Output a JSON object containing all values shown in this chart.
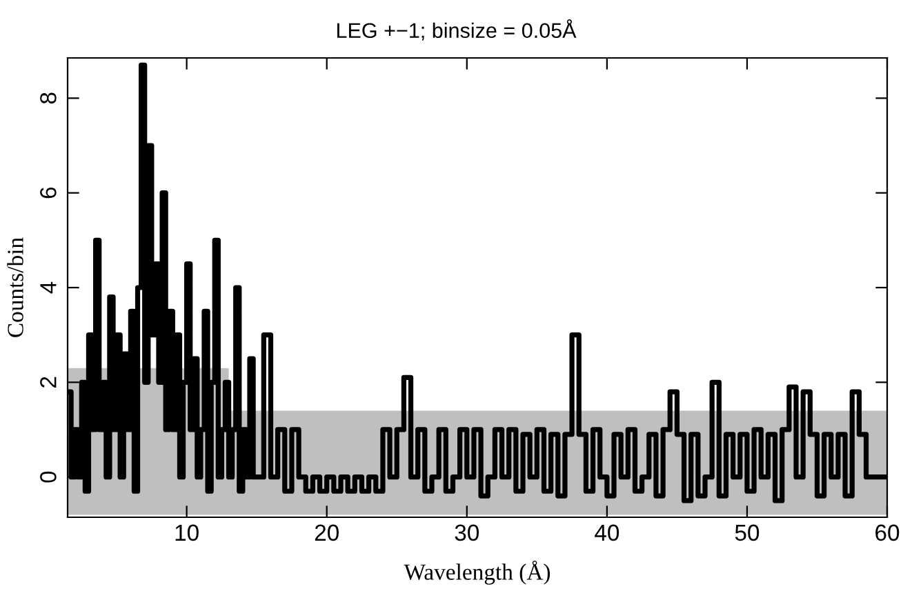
{
  "chart_data": {
    "type": "step",
    "title": "LEG +−1; binsize = 0.05Å",
    "xlabel": "Wavelength (Å)",
    "ylabel": "Counts/bin",
    "xlim": [
      1.5,
      60
    ],
    "xticks": [
      10,
      20,
      30,
      40,
      50,
      60
    ],
    "ylim": [
      -0.85,
      8.85
    ],
    "yticks": [
      0,
      2,
      4,
      6,
      8
    ],
    "grid": false,
    "legend": false,
    "marker": "none",
    "line_style": "solid",
    "series": [
      {
        "color": "#000000",
        "x": [
          1.5,
          1.75,
          2.0,
          2.25,
          2.5,
          2.75,
          3.0,
          3.25,
          3.5,
          3.75,
          4.0,
          4.25,
          4.5,
          4.75,
          5.0,
          5.25,
          5.5,
          5.75,
          6.0,
          6.25,
          6.5,
          6.75,
          7.0,
          7.25,
          7.5,
          7.75,
          8.0,
          8.25,
          8.5,
          8.75,
          9.0,
          9.25,
          9.5,
          9.75,
          10.0,
          10.25,
          10.5,
          10.75,
          11.0,
          11.25,
          11.5,
          11.75,
          12.0,
          12.25,
          12.5,
          12.75,
          13.0,
          13.25,
          13.5,
          13.75,
          14.0,
          14.25,
          14.5,
          14.75,
          15,
          15.5,
          16,
          16.5,
          17,
          17.5,
          18,
          18.5,
          19,
          19.5,
          20,
          20.5,
          21,
          21.5,
          22,
          22.5,
          23,
          23.5,
          24,
          24.5,
          25,
          25.5,
          26,
          26.5,
          27,
          27.5,
          28,
          28.5,
          29,
          29.5,
          30,
          30.5,
          31,
          31.5,
          32,
          32.5,
          33,
          33.5,
          34,
          34.5,
          35,
          35.5,
          36,
          36.5,
          37,
          37.5,
          38,
          38.5,
          39,
          39.5,
          40,
          40.5,
          41,
          41.5,
          42,
          42.5,
          43,
          43.5,
          44,
          44.5,
          45,
          45.5,
          46,
          46.5,
          47,
          47.5,
          48,
          48.5,
          49,
          49.5,
          50,
          50.5,
          51,
          51.5,
          52,
          52.5,
          53,
          53.5,
          54,
          54.5,
          55,
          55.5,
          56,
          56.5,
          57,
          57.5,
          58,
          58.5,
          59,
          60
        ],
        "values": [
          1.8,
          0,
          1,
          0,
          2,
          -0.3,
          3,
          1,
          5,
          1,
          2,
          0,
          3.8,
          1,
          3,
          0,
          2.6,
          1,
          3.5,
          -0.3,
          4,
          8.7,
          2,
          7,
          3,
          4.5,
          2,
          6,
          1,
          3.5,
          1,
          3,
          0,
          2,
          4.5,
          1,
          2.5,
          0,
          1,
          3.5,
          -0.3,
          2,
          5,
          0,
          1,
          2,
          0,
          1,
          4,
          -0.3,
          1,
          0,
          2.5,
          0,
          0,
          3,
          0,
          1,
          -0.3,
          1,
          0,
          -0.3,
          0,
          -0.3,
          0,
          -0.3,
          0,
          -0.3,
          0,
          -0.3,
          0,
          -0.3,
          1,
          0,
          1,
          2.1,
          0,
          1,
          -0.3,
          0,
          1,
          -0.3,
          0,
          1,
          0,
          1,
          -0.4,
          0,
          1,
          0,
          1,
          -0.3,
          0.9,
          0,
          1,
          -0.3,
          0.9,
          -0.4,
          0.9,
          3,
          0.9,
          -0.3,
          1,
          0,
          -0.4,
          0.9,
          0,
          1,
          -0.3,
          0,
          0.9,
          -0.4,
          1,
          1.8,
          0.9,
          -0.5,
          0.9,
          -0.4,
          0,
          2,
          -0.4,
          0.9,
          0,
          0.9,
          -0.3,
          1,
          0,
          0.9,
          -0.5,
          1,
          1.9,
          0,
          1.8,
          0.9,
          -0.4,
          0.9,
          0,
          0.9,
          -0.4,
          1.8,
          0.9,
          0,
          0,
          0
        ],
        "lower": [
          -0.8,
          -0.8,
          -0.8,
          -0.8,
          -0.8,
          -0.8,
          -0.8,
          -0.8,
          -0.8,
          -0.8,
          -0.8,
          -0.8,
          -0.8,
          -0.8,
          -0.8,
          -0.8,
          -0.8,
          -0.8,
          -0.8,
          -0.8,
          -0.8,
          -0.8,
          -0.8,
          -0.8,
          -0.8,
          -0.8,
          -0.8,
          -0.8,
          -0.8,
          -0.8,
          -0.8,
          -0.8,
          -0.8,
          -0.8,
          -0.8,
          -0.8,
          -0.8,
          -0.8,
          -0.8,
          -0.8,
          -0.8,
          -0.8,
          -0.8,
          -0.8,
          -0.8,
          -0.8,
          -0.8,
          -0.8,
          -0.8,
          -0.8,
          -0.8,
          -0.8,
          -0.8,
          -0.8,
          -0.8,
          -0.8,
          -0.8,
          -0.8,
          -0.8,
          -0.8,
          -0.8,
          -0.8,
          -0.8,
          -0.8,
          -0.8,
          -0.8,
          -0.8,
          -0.8,
          -0.8,
          -0.8,
          -0.8,
          -0.8,
          -0.8,
          -0.8,
          -0.8,
          -0.8,
          -0.8,
          -0.8,
          -0.8,
          -0.8,
          -0.8,
          -0.8,
          -0.8,
          -0.8,
          -0.8,
          -0.8,
          -0.8,
          -0.8,
          -0.8,
          -0.8,
          -0.8,
          -0.8,
          -0.8,
          -0.8,
          -0.8,
          -0.8,
          -0.8,
          -0.8,
          -0.8,
          -0.8,
          -0.8,
          -0.8,
          -0.8,
          -0.8,
          -0.8,
          -0.8,
          -0.8,
          -0.8,
          -0.8,
          -0.8,
          -0.8,
          -0.8,
          -0.8,
          -0.8,
          -0.8,
          -0.8,
          -0.8,
          -0.8,
          -0.8,
          -0.8,
          -0.8,
          -0.8,
          -0.8,
          -0.8,
          -0.8,
          -0.8,
          -0.8,
          -0.8,
          -0.8,
          -0.8,
          -0.8,
          -0.8,
          -0.8,
          -0.8,
          -0.8,
          -0.8,
          -0.8,
          -0.8,
          -0.8,
          -0.8,
          -0.8,
          -0.8,
          -0.8,
          -0.8
        ],
        "upper": [
          2.3,
          2.3,
          2.3,
          2.3,
          2.3,
          2.3,
          2.3,
          2.3,
          2.3,
          2.3,
          2.3,
          2.3,
          2.3,
          2.3,
          2.3,
          2.3,
          2.3,
          2.3,
          2.3,
          2.3,
          2.3,
          2.3,
          2.3,
          2.3,
          2.3,
          2.3,
          2.3,
          2.3,
          2.3,
          2.3,
          2.3,
          2.3,
          2.3,
          2.3,
          2.3,
          2.3,
          2.3,
          2.3,
          2.3,
          2.3,
          2.3,
          2.3,
          2.3,
          2.3,
          2.3,
          2.3,
          1.4,
          1.4,
          1.4,
          1.4,
          1.4,
          1.4,
          1.4,
          1.4,
          1.4,
          1.4,
          1.4,
          1.4,
          1.4,
          1.4,
          1.4,
          1.4,
          1.4,
          1.4,
          1.4,
          1.4,
          1.4,
          1.4,
          1.4,
          1.4,
          1.4,
          1.4,
          1.4,
          1.4,
          1.4,
          1.4,
          1.4,
          1.4,
          1.4,
          1.4,
          1.4,
          1.4,
          1.4,
          1.4,
          1.4,
          1.4,
          1.4,
          1.4,
          1.4,
          1.4,
          1.4,
          1.4,
          1.4,
          1.4,
          1.4,
          1.4,
          1.4,
          1.4,
          1.4,
          1.4,
          1.4,
          1.4,
          1.4,
          1.4,
          1.4,
          1.4,
          1.4,
          1.4,
          1.4,
          1.4,
          1.4,
          1.4,
          1.4,
          1.4,
          1.4,
          1.4,
          1.4,
          1.4,
          1.4,
          1.4,
          1.4,
          1.4,
          1.4,
          1.4,
          1.4,
          1.4,
          1.4,
          1.4,
          1.4,
          1.4,
          1.4,
          1.4,
          1.4,
          1.4,
          1.4,
          1.4,
          1.4,
          1.4,
          1.4,
          1.4,
          1.4,
          1.4,
          1.4,
          1.4
        ]
      }
    ]
  }
}
